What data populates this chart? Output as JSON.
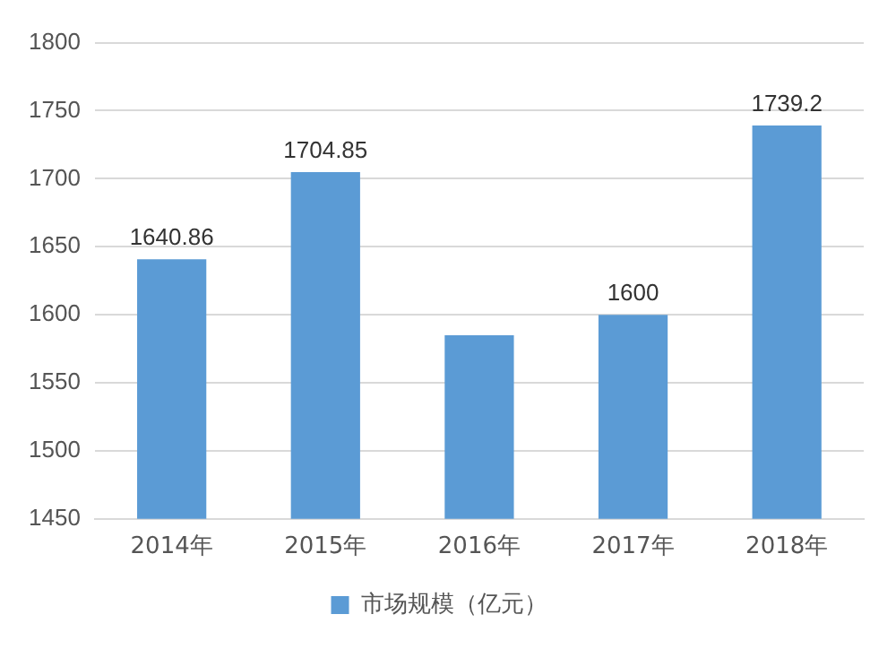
{
  "chart_data": {
    "type": "bar",
    "categories": [
      "2014年",
      "2015年",
      "2016年",
      "2017年",
      "2018年"
    ],
    "series": [
      {
        "name": "市场规模（亿元）",
        "color": "#5b9bd5",
        "values": [
          1640.86,
          1704.85,
          1585,
          1600,
          1739.2
        ],
        "value_labels": [
          "1640.86",
          "1704.85",
          null,
          "1600",
          "1739.2"
        ]
      }
    ],
    "ylim": [
      1450,
      1800
    ],
    "yticks": [
      1450,
      1500,
      1550,
      1600,
      1650,
      1700,
      1750,
      1800
    ],
    "grid": "y",
    "legend": "bottom"
  }
}
